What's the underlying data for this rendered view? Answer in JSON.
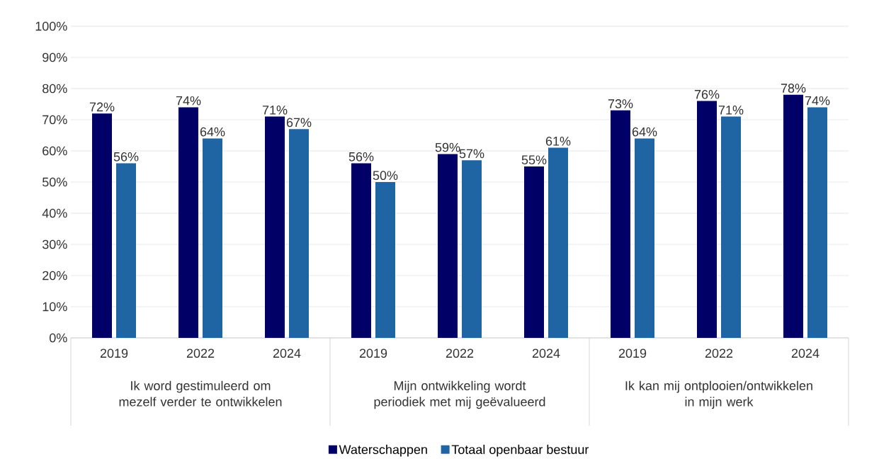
{
  "chart_data": {
    "type": "bar",
    "categories": [
      "2019",
      "2022",
      "2024",
      "2019",
      "2022",
      "2024",
      "2019",
      "2022",
      "2024"
    ],
    "series": [
      {
        "name": "Waterschappen",
        "color": "#000066",
        "values": [
          72,
          74,
          71,
          56,
          59,
          55,
          73,
          76,
          78
        ],
        "value_labels": [
          "72%",
          "74%",
          "71%",
          "56%",
          "59%",
          "55%",
          "73%",
          "76%",
          "78%"
        ]
      },
      {
        "name": "Totaal openbaar bestuur",
        "color": "#1f64a3",
        "values": [
          56,
          64,
          67,
          50,
          57,
          61,
          64,
          71,
          74
        ],
        "value_labels": [
          "56%",
          "64%",
          "67%",
          "50%",
          "57%",
          "61%",
          "64%",
          "71%",
          "74%"
        ]
      }
    ],
    "annotations": [
      "Ik word gestimuleerd om mezelf verder te ontwikkelen",
      "Mijn ontwikkeling wordt periodiek met mij geëvalueerd",
      "Ik kan mij ontplooien/ontwikkelen in mijn werk"
    ],
    "ylim": [
      0,
      100
    ],
    "yticks": [
      {
        "value": 0,
        "label": "0%"
      },
      {
        "value": 10,
        "label": "10%"
      },
      {
        "value": 20,
        "label": "20%"
      },
      {
        "value": 30,
        "label": "30%"
      },
      {
        "value": 40,
        "label": "40%"
      },
      {
        "value": 50,
        "label": "50%"
      },
      {
        "value": 60,
        "label": "60%"
      },
      {
        "value": 70,
        "label": "70%"
      },
      {
        "value": 80,
        "label": "80%"
      },
      {
        "value": 90,
        "label": "90%"
      },
      {
        "value": 100,
        "label": "100%"
      }
    ],
    "grid": "y",
    "legend": "bottom"
  }
}
